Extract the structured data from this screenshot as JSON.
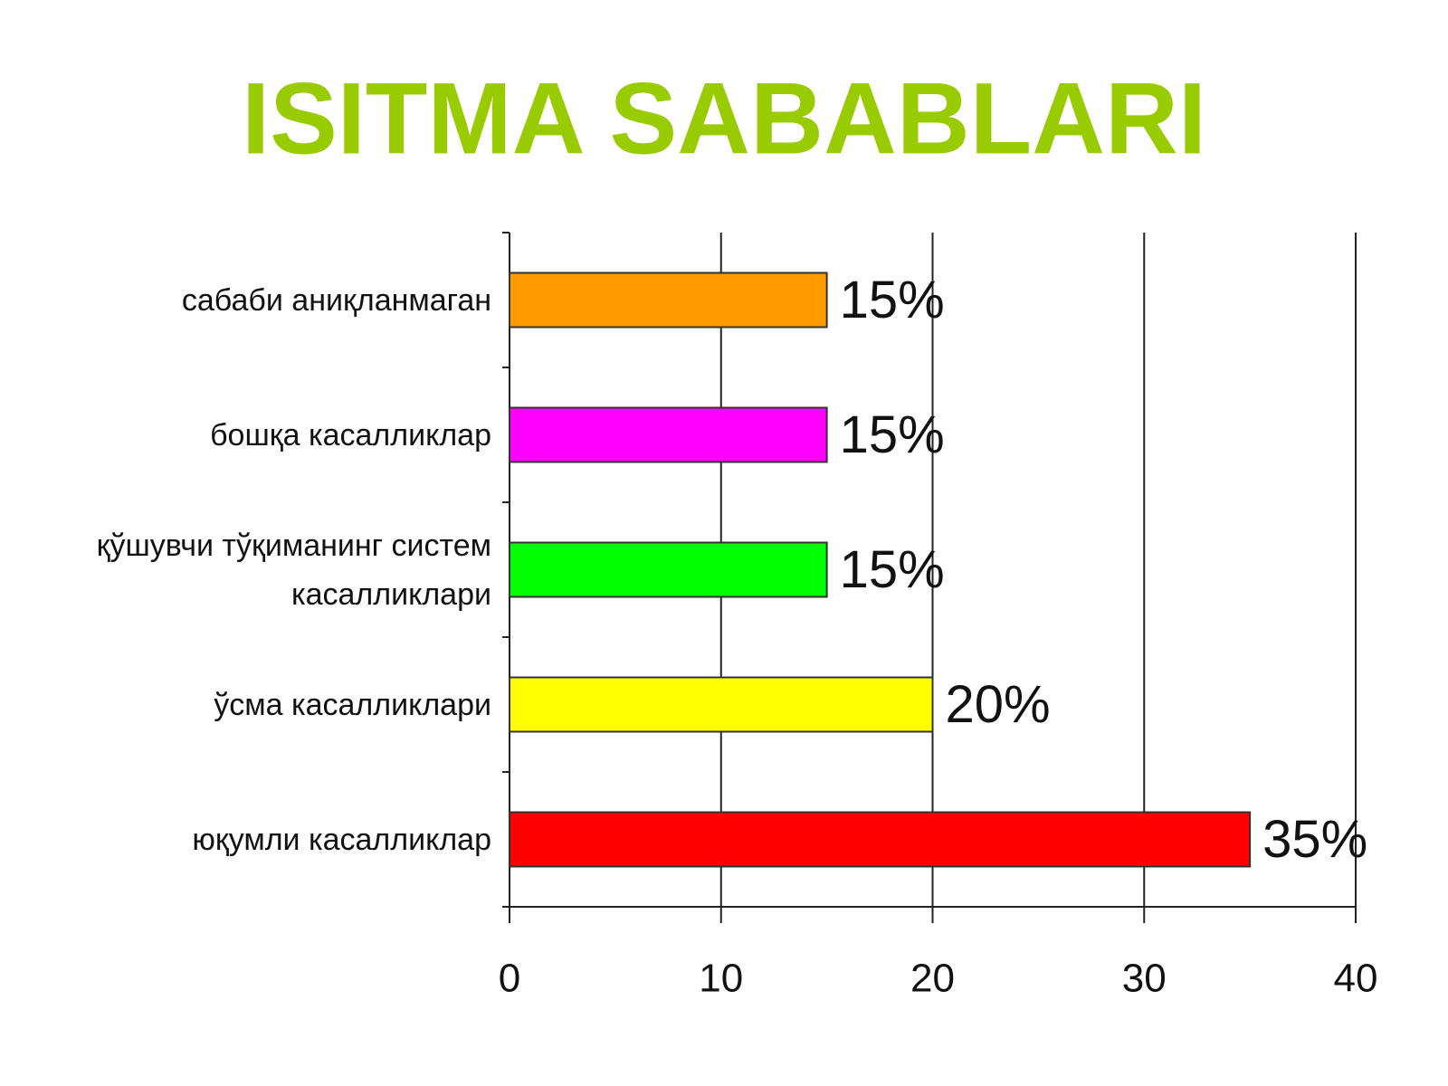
{
  "chart_data": {
    "type": "bar",
    "orientation": "horizontal",
    "title": "ISITMA SABABLARI",
    "categories": [
      "сабаби аниқланмаган",
      "бошқа касалликлар",
      "қўшувчи тўқиманинг систем касалликлари",
      "ўсма касалликлари",
      "юқумли касалликлар"
    ],
    "values": [
      15,
      15,
      15,
      20,
      35
    ],
    "value_labels": [
      "15%",
      "15%",
      "15%",
      "20%",
      "35%"
    ],
    "colors": [
      "#ff9900",
      "#ff00ff",
      "#00ff00",
      "#ffff00",
      "#ff0000"
    ],
    "xlim": [
      0,
      40
    ],
    "xticks": [
      0,
      10,
      20,
      30,
      40
    ],
    "grid": true
  }
}
